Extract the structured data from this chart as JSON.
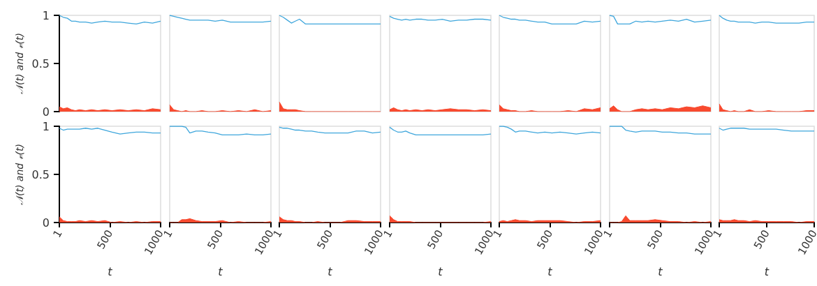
{
  "chart_data": [
    {
      "type": "line",
      "ylabel": "𝒩(t) and 𝓋(t)",
      "tick_labels": "y",
      "x": [
        1,
        40,
        80,
        120,
        160,
        200,
        260,
        320,
        380,
        450,
        520,
        600,
        680,
        760,
        840,
        920,
        1000
      ],
      "xlim": [
        1,
        1000
      ],
      "xticks": [
        1,
        500,
        1000
      ],
      "ylim": [
        0,
        1
      ],
      "yticks": [
        0,
        0.5,
        1
      ],
      "series": [
        {
          "type": "line",
          "color": "#3ea6dc",
          "values": [
            1,
            0.98,
            0.97,
            0.94,
            0.94,
            0.93,
            0.93,
            0.92,
            0.93,
            0.94,
            0.93,
            0.93,
            0.92,
            0.91,
            0.93,
            0.92,
            0.94
          ]
        },
        {
          "type": "area",
          "color": "#f84a2f",
          "values": [
            0.05,
            0.03,
            0.04,
            0.02,
            0.01,
            0.02,
            0.01,
            0.02,
            0.01,
            0.02,
            0.01,
            0.02,
            0.01,
            0.02,
            0.01,
            0.03,
            0.02
          ]
        }
      ]
    },
    {
      "type": "line",
      "tick_labels": false,
      "x": [
        1,
        40,
        80,
        120,
        160,
        200,
        260,
        320,
        380,
        450,
        520,
        600,
        680,
        760,
        840,
        920,
        1000
      ],
      "xlim": [
        1,
        1000
      ],
      "xticks": [
        1,
        500,
        1000
      ],
      "ylim": [
        0,
        1
      ],
      "yticks": [
        0,
        0.5,
        1
      ],
      "series": [
        {
          "type": "line",
          "color": "#3ea6dc",
          "values": [
            1,
            0.99,
            0.98,
            0.97,
            0.96,
            0.95,
            0.95,
            0.95,
            0.95,
            0.94,
            0.95,
            0.93,
            0.93,
            0.93,
            0.93,
            0.93,
            0.94
          ]
        },
        {
          "type": "area",
          "color": "#f84a2f",
          "values": [
            0.07,
            0.02,
            0.01,
            0,
            0.01,
            0,
            0,
            0.01,
            0,
            0,
            0.01,
            0,
            0.01,
            0,
            0.02,
            0,
            0.01
          ]
        }
      ]
    },
    {
      "type": "line",
      "tick_labels": false,
      "x": [
        1,
        40,
        80,
        120,
        160,
        200,
        260,
        320,
        380,
        450,
        520,
        600,
        680,
        760,
        840,
        920,
        1000
      ],
      "xlim": [
        1,
        1000
      ],
      "xticks": [
        1,
        500,
        1000
      ],
      "ylim": [
        0,
        1
      ],
      "yticks": [
        0,
        0.5,
        1
      ],
      "series": [
        {
          "type": "line",
          "color": "#3ea6dc",
          "values": [
            1,
            0.98,
            0.95,
            0.92,
            0.94,
            0.96,
            0.91,
            0.91,
            0.91,
            0.91,
            0.91,
            0.91,
            0.91,
            0.91,
            0.91,
            0.91,
            0.91
          ]
        },
        {
          "type": "area",
          "color": "#f84a2f",
          "values": [
            0.1,
            0.03,
            0.02,
            0.02,
            0.02,
            0.01,
            0,
            0,
            0,
            0,
            0,
            0,
            0,
            0,
            0,
            0,
            0
          ]
        }
      ]
    },
    {
      "type": "line",
      "tick_labels": false,
      "x": [
        1,
        40,
        80,
        120,
        160,
        200,
        260,
        320,
        380,
        450,
        520,
        600,
        680,
        760,
        840,
        920,
        1000
      ],
      "xlim": [
        1,
        1000
      ],
      "xticks": [
        1,
        500,
        1000
      ],
      "ylim": [
        0,
        1
      ],
      "yticks": [
        0,
        0.5,
        1
      ],
      "series": [
        {
          "type": "line",
          "color": "#3ea6dc",
          "values": [
            0.99,
            0.97,
            0.96,
            0.95,
            0.96,
            0.95,
            0.96,
            0.96,
            0.95,
            0.95,
            0.96,
            0.94,
            0.95,
            0.95,
            0.96,
            0.96,
            0.95
          ]
        },
        {
          "type": "area",
          "color": "#f84a2f",
          "values": [
            0.02,
            0.04,
            0.02,
            0.01,
            0.02,
            0.01,
            0.02,
            0.01,
            0.02,
            0.01,
            0.02,
            0.03,
            0.02,
            0.02,
            0.01,
            0.02,
            0.01
          ]
        }
      ]
    },
    {
      "type": "line",
      "tick_labels": false,
      "x": [
        1,
        40,
        80,
        120,
        160,
        200,
        260,
        320,
        380,
        450,
        520,
        600,
        680,
        760,
        840,
        920,
        1000
      ],
      "xlim": [
        1,
        1000
      ],
      "xticks": [
        1,
        500,
        1000
      ],
      "ylim": [
        0,
        1
      ],
      "yticks": [
        0,
        0.5,
        1
      ],
      "series": [
        {
          "type": "line",
          "color": "#3ea6dc",
          "values": [
            1,
            0.98,
            0.97,
            0.96,
            0.96,
            0.95,
            0.95,
            0.94,
            0.93,
            0.93,
            0.91,
            0.91,
            0.91,
            0.91,
            0.94,
            0.93,
            0.94
          ]
        },
        {
          "type": "area",
          "color": "#f84a2f",
          "values": [
            0.07,
            0.03,
            0.02,
            0.01,
            0.01,
            0,
            0,
            0.01,
            0,
            0,
            0,
            0,
            0.01,
            0,
            0.03,
            0.02,
            0.04
          ]
        }
      ]
    },
    {
      "type": "line",
      "tick_labels": false,
      "x": [
        1,
        40,
        80,
        120,
        160,
        200,
        260,
        320,
        380,
        450,
        520,
        600,
        680,
        760,
        840,
        920,
        1000
      ],
      "xlim": [
        1,
        1000
      ],
      "xticks": [
        1,
        500,
        1000
      ],
      "ylim": [
        0,
        1
      ],
      "yticks": [
        0,
        0.5,
        1
      ],
      "series": [
        {
          "type": "line",
          "color": "#3ea6dc",
          "values": [
            1,
            0.99,
            0.91,
            0.91,
            0.91,
            0.91,
            0.94,
            0.93,
            0.94,
            0.93,
            0.94,
            0.95,
            0.94,
            0.96,
            0.93,
            0.94,
            0.95
          ]
        },
        {
          "type": "area",
          "color": "#f84a2f",
          "values": [
            0.03,
            0.06,
            0.02,
            0,
            0,
            0,
            0.02,
            0.03,
            0.02,
            0.03,
            0.02,
            0.04,
            0.03,
            0.05,
            0.04,
            0.06,
            0.04
          ]
        }
      ]
    },
    {
      "type": "line",
      "tick_labels": false,
      "x": [
        1,
        40,
        80,
        120,
        160,
        200,
        260,
        320,
        380,
        450,
        520,
        600,
        680,
        760,
        840,
        920,
        1000
      ],
      "xlim": [
        1,
        1000
      ],
      "xticks": [
        1,
        500,
        1000
      ],
      "ylim": [
        0,
        1
      ],
      "yticks": [
        0,
        0.5,
        1
      ],
      "series": [
        {
          "type": "line",
          "color": "#3ea6dc",
          "values": [
            1,
            0.97,
            0.95,
            0.94,
            0.94,
            0.93,
            0.93,
            0.93,
            0.92,
            0.93,
            0.93,
            0.92,
            0.92,
            0.92,
            0.92,
            0.93,
            0.93
          ]
        },
        {
          "type": "area",
          "color": "#f84a2f",
          "values": [
            0.08,
            0.02,
            0.01,
            0,
            0.01,
            0,
            0,
            0.02,
            0,
            0,
            0.01,
            0,
            0,
            0,
            0,
            0.01,
            0.01
          ]
        }
      ]
    },
    {
      "type": "line",
      "xlabel": "t",
      "ylabel": "𝒩(t) and 𝓋(t)",
      "x": [
        1,
        40,
        80,
        120,
        160,
        200,
        260,
        320,
        380,
        450,
        520,
        600,
        680,
        760,
        840,
        920,
        1000
      ],
      "xlim": [
        1,
        1000
      ],
      "xticks": [
        1,
        500,
        1000
      ],
      "ylim": [
        0,
        1
      ],
      "yticks": [
        0,
        0.5,
        1
      ],
      "series": [
        {
          "type": "line",
          "color": "#3ea6dc",
          "values": [
            0.98,
            0.96,
            0.97,
            0.97,
            0.97,
            0.97,
            0.98,
            0.97,
            0.98,
            0.96,
            0.94,
            0.92,
            0.93,
            0.94,
            0.94,
            0.93,
            0.93
          ]
        },
        {
          "type": "area",
          "color": "#f84a2f",
          "values": [
            0.06,
            0.02,
            0.01,
            0.01,
            0.01,
            0.02,
            0.01,
            0.02,
            0.01,
            0.02,
            0,
            0.01,
            0,
            0.01,
            0,
            0.01,
            0.01
          ]
        }
      ]
    },
    {
      "type": "line",
      "xlabel": "t",
      "tick_labels": "x",
      "x": [
        1,
        40,
        80,
        120,
        160,
        200,
        260,
        320,
        380,
        450,
        520,
        600,
        680,
        760,
        840,
        920,
        1000
      ],
      "xlim": [
        1,
        1000
      ],
      "xticks": [
        1,
        500,
        1000
      ],
      "ylim": [
        0,
        1
      ],
      "yticks": [
        0,
        0.5,
        1
      ],
      "series": [
        {
          "type": "line",
          "color": "#3ea6dc",
          "values": [
            1,
            1,
            1,
            1,
            0.99,
            0.93,
            0.95,
            0.95,
            0.94,
            0.93,
            0.91,
            0.91,
            0.91,
            0.92,
            0.91,
            0.91,
            0.92
          ]
        },
        {
          "type": "area",
          "color": "#f84a2f",
          "values": [
            0,
            0,
            0,
            0.03,
            0.03,
            0.04,
            0.02,
            0.01,
            0.01,
            0.01,
            0.02,
            0,
            0.01,
            0,
            0,
            0,
            0.01
          ]
        }
      ]
    },
    {
      "type": "line",
      "xlabel": "t",
      "tick_labels": "x",
      "x": [
        1,
        40,
        80,
        120,
        160,
        200,
        260,
        320,
        380,
        450,
        520,
        600,
        680,
        760,
        840,
        920,
        1000
      ],
      "xlim": [
        1,
        1000
      ],
      "xticks": [
        1,
        500,
        1000
      ],
      "ylim": [
        0,
        1
      ],
      "yticks": [
        0,
        0.5,
        1
      ],
      "series": [
        {
          "type": "line",
          "color": "#3ea6dc",
          "values": [
            0.99,
            0.98,
            0.98,
            0.97,
            0.96,
            0.96,
            0.95,
            0.95,
            0.94,
            0.93,
            0.93,
            0.93,
            0.93,
            0.95,
            0.95,
            0.93,
            0.94
          ]
        },
        {
          "type": "area",
          "color": "#f84a2f",
          "values": [
            0.06,
            0.03,
            0.02,
            0.02,
            0.01,
            0.01,
            0,
            0,
            0.01,
            0,
            0,
            0,
            0.02,
            0.02,
            0.01,
            0.01,
            0.01
          ]
        }
      ]
    },
    {
      "type": "line",
      "xlabel": "t",
      "tick_labels": "x",
      "x": [
        1,
        40,
        80,
        120,
        160,
        200,
        260,
        320,
        380,
        450,
        520,
        600,
        680,
        760,
        840,
        920,
        1000
      ],
      "xlim": [
        1,
        1000
      ],
      "xticks": [
        1,
        500,
        1000
      ],
      "ylim": [
        0,
        1
      ],
      "yticks": [
        0,
        0.5,
        1
      ],
      "series": [
        {
          "type": "line",
          "color": "#3ea6dc",
          "values": [
            0.99,
            0.96,
            0.94,
            0.94,
            0.95,
            0.93,
            0.91,
            0.91,
            0.91,
            0.91,
            0.91,
            0.91,
            0.91,
            0.91,
            0.91,
            0.91,
            0.92
          ]
        },
        {
          "type": "area",
          "color": "#f84a2f",
          "values": [
            0.07,
            0.03,
            0.01,
            0.01,
            0.01,
            0.01,
            0,
            0,
            0,
            0,
            0,
            0,
            0,
            0,
            0,
            0,
            0.01
          ]
        }
      ]
    },
    {
      "type": "line",
      "xlabel": "t",
      "tick_labels": "x",
      "x": [
        1,
        40,
        80,
        120,
        160,
        200,
        260,
        320,
        380,
        450,
        520,
        600,
        680,
        760,
        840,
        920,
        1000
      ],
      "xlim": [
        1,
        1000
      ],
      "xticks": [
        1,
        500,
        1000
      ],
      "ylim": [
        0,
        1
      ],
      "yticks": [
        0,
        0.5,
        1
      ],
      "series": [
        {
          "type": "line",
          "color": "#3ea6dc",
          "values": [
            1,
            1,
            0.99,
            0.97,
            0.94,
            0.95,
            0.95,
            0.94,
            0.93,
            0.94,
            0.93,
            0.94,
            0.93,
            0.92,
            0.93,
            0.94,
            0.93
          ]
        },
        {
          "type": "area",
          "color": "#f84a2f",
          "values": [
            0.01,
            0.02,
            0.01,
            0.02,
            0.03,
            0.02,
            0.02,
            0.01,
            0.02,
            0.02,
            0.02,
            0.02,
            0.01,
            0,
            0.01,
            0.01,
            0.02
          ]
        }
      ]
    },
    {
      "type": "line",
      "xlabel": "t",
      "tick_labels": "x",
      "x": [
        1,
        40,
        80,
        120,
        160,
        200,
        260,
        320,
        380,
        450,
        520,
        600,
        680,
        760,
        840,
        920,
        1000
      ],
      "xlim": [
        1,
        1000
      ],
      "xticks": [
        1,
        500,
        1000
      ],
      "ylim": [
        0,
        1
      ],
      "yticks": [
        0,
        0.5,
        1
      ],
      "series": [
        {
          "type": "line",
          "color": "#3ea6dc",
          "values": [
            1,
            1,
            1,
            1,
            0.96,
            0.95,
            0.94,
            0.95,
            0.95,
            0.95,
            0.94,
            0.94,
            0.93,
            0.93,
            0.92,
            0.92,
            0.92
          ]
        },
        {
          "type": "area",
          "color": "#f84a2f",
          "values": [
            0,
            0,
            0,
            0.01,
            0.07,
            0.02,
            0.02,
            0.02,
            0.02,
            0.03,
            0.02,
            0.01,
            0.01,
            0,
            0.01,
            0,
            0.01
          ]
        }
      ]
    },
    {
      "type": "line",
      "xlabel": "t",
      "tick_labels": "x",
      "x": [
        1,
        40,
        80,
        120,
        160,
        200,
        260,
        320,
        380,
        450,
        520,
        600,
        680,
        760,
        840,
        920,
        1000
      ],
      "xlim": [
        1,
        1000
      ],
      "xticks": [
        1,
        500,
        1000
      ],
      "ylim": [
        0,
        1
      ],
      "yticks": [
        0,
        0.5,
        1
      ],
      "series": [
        {
          "type": "line",
          "color": "#3ea6dc",
          "values": [
            0.98,
            0.96,
            0.97,
            0.98,
            0.98,
            0.98,
            0.98,
            0.97,
            0.97,
            0.97,
            0.97,
            0.97,
            0.96,
            0.95,
            0.95,
            0.95,
            0.95
          ]
        },
        {
          "type": "area",
          "color": "#f84a2f",
          "values": [
            0.03,
            0.02,
            0.02,
            0.02,
            0.03,
            0.02,
            0.02,
            0.01,
            0.02,
            0.01,
            0.01,
            0.01,
            0.01,
            0.01,
            0,
            0.01,
            0.01
          ]
        }
      ]
    }
  ]
}
